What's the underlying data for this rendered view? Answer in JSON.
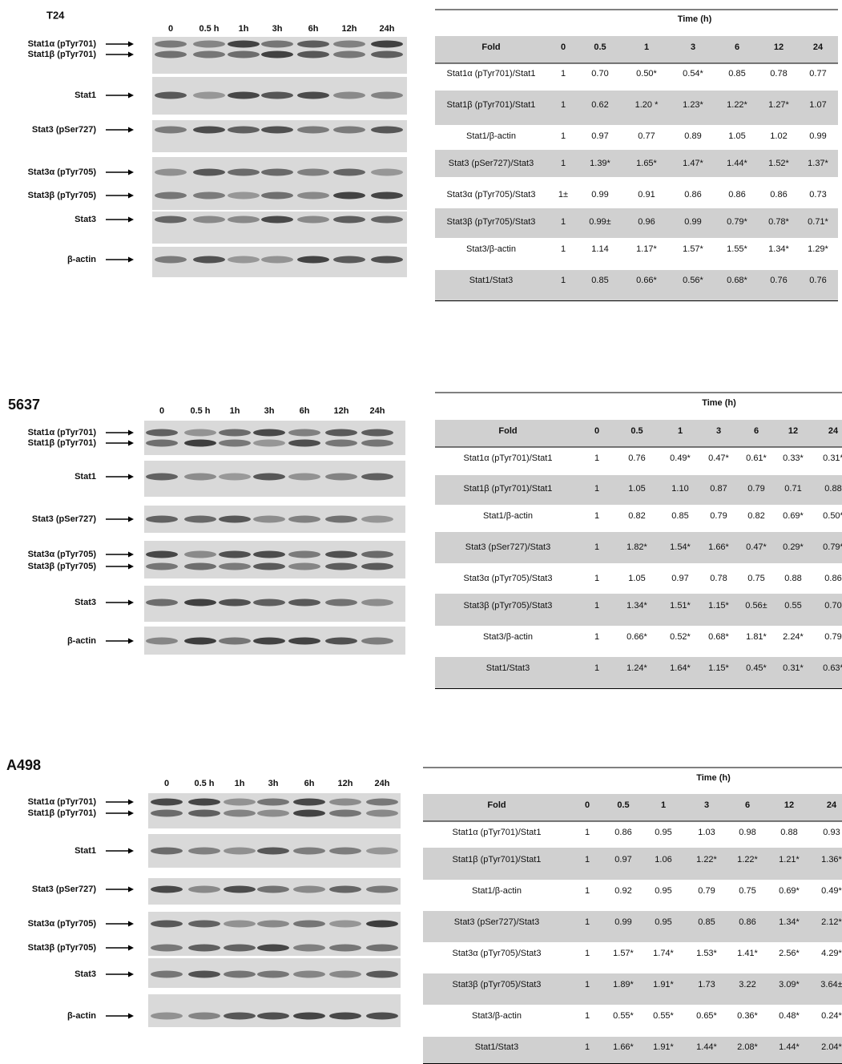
{
  "panels": [
    {
      "title": "T24",
      "lanes": [
        "0",
        "0.5 h",
        "1h",
        "3h",
        "6h",
        "12h",
        "24h"
      ],
      "blot_labels": [
        "Stat1α (pTyr701)",
        "Stat1β (pTyr701)",
        "Stat1",
        "Stat3 (pSer727)",
        "Stat3α (pTyr705)",
        "Stat3β (pTyr705)",
        "Stat3",
        "β-actin"
      ],
      "table": {
        "time_label": "Time (h)",
        "header": [
          "Fold",
          "0",
          "0.5",
          "1",
          "3",
          "6",
          "12",
          "24"
        ],
        "rows": [
          [
            "Stat1α (pTyr701)/Stat1",
            "1",
            "0.70",
            "0.50*",
            "0.54*",
            "0.85",
            "0.78",
            "0.77"
          ],
          [
            "Stat1β (pTyr701)/Stat1",
            "1",
            "0.62",
            "1.20 *",
            "1.23*",
            "1.22*",
            "1.27*",
            "1.07"
          ],
          [
            "Stat1/β-actin",
            "1",
            "0.97",
            "0.77",
            "0.89",
            "1.05",
            "1.02",
            "0.99"
          ],
          [
            "Stat3 (pSer727)/Stat3",
            "1",
            "1.39*",
            "1.65*",
            "1.47*",
            "1.44*",
            "1.52*",
            "1.37*"
          ],
          [
            "Stat3α (pTyr705)/Stat3",
            "1±",
            "0.99",
            "0.91",
            "0.86",
            "0.86",
            "0.86",
            "0.73"
          ],
          [
            "Stat3β (pTyr705)/Stat3",
            "1",
            "0.99±",
            "0.96",
            "0.99",
            "0.79*",
            "0.78*",
            "0.71*"
          ],
          [
            "Stat3/β-actin",
            "1",
            "1.14",
            "1.17*",
            "1.57*",
            "1.55*",
            "1.34*",
            "1.29*"
          ],
          [
            "Stat1/Stat3",
            "1",
            "0.85",
            "0.66*",
            "0.56*",
            "0.68*",
            "0.76",
            "0.76"
          ]
        ]
      }
    },
    {
      "title": "5637",
      "lanes": [
        "0",
        "0.5 h",
        "1h",
        "3h",
        "6h",
        "12h",
        "24h"
      ],
      "blot_labels": [
        "Stat1α (pTyr701)",
        "Stat1β (pTyr701)",
        "Stat1",
        "Stat3 (pSer727)",
        "Stat3α (pTyr705)",
        "Stat3β (pTyr705)",
        "Stat3",
        "β-actin"
      ],
      "table": {
        "time_label": "Time (h)",
        "header": [
          "Fold",
          "0",
          "0.5",
          "1",
          "3",
          "6",
          "12",
          "24"
        ],
        "rows": [
          [
            "Stat1α (pTyr701)/Stat1",
            "1",
            "0.76",
            "0.49*",
            "0.47*",
            "0.61*",
            "0.33*",
            "0.31*"
          ],
          [
            "Stat1β (pTyr701)/Stat1",
            "1",
            "1.05",
            "1.10",
            "0.87",
            "0.79",
            "0.71",
            "0.88"
          ],
          [
            "Stat1/β-actin",
            "1",
            "0.82",
            "0.85",
            "0.79",
            "0.82",
            "0.69*",
            "0.50*"
          ],
          [
            "Stat3 (pSer727)/Stat3",
            "1",
            "1.82*",
            "1.54*",
            "1.66*",
            "0.47*",
            "0.29*",
            "0.79*"
          ],
          [
            "Stat3α (pTyr705)/Stat3",
            "1",
            "1.05",
            "0.97",
            "0.78",
            "0.75",
            "0.88",
            "0.86"
          ],
          [
            "Stat3β (pTyr705)/Stat3",
            "1",
            "1.34*",
            "1.51*",
            "1.15*",
            "0.56±",
            "0.55",
            "0.70"
          ],
          [
            "Stat3/β-actin",
            "1",
            "0.66*",
            "0.52*",
            "0.68*",
            "1.81*",
            "2.24*",
            "0.79"
          ],
          [
            "Stat1/Stat3",
            "1",
            "1.24*",
            "1.64*",
            "1.15*",
            "0.45*",
            "0.31*",
            "0.63*"
          ]
        ]
      }
    },
    {
      "title": "A498",
      "lanes": [
        "0",
        "0.5 h",
        "1h",
        "3h",
        "6h",
        "12h",
        "24h"
      ],
      "blot_labels": [
        "Stat1α (pTyr701)",
        "Stat1β (pTyr701)",
        "Stat1",
        "Stat3 (pSer727)",
        "Stat3α (pTyr705)",
        "Stat3β (pTyr705)",
        "Stat3",
        "β-actin"
      ],
      "table": {
        "time_label": "Time (h)",
        "header": [
          "Fold",
          "0",
          "0.5",
          "1",
          "3",
          "6",
          "12",
          "24"
        ],
        "rows": [
          [
            "Stat1α (pTyr701)/Stat1",
            "1",
            "0.86",
            "0.95",
            "1.03",
            "0.98",
            "0.88",
            "0.93"
          ],
          [
            "Stat1β (pTyr701)/Stat1",
            "1",
            "0.97",
            "1.06",
            "1.22*",
            "1.22*",
            "1.21*",
            "1.36*"
          ],
          [
            "Stat1/β-actin",
            "1",
            "0.92",
            "0.95",
            "0.79",
            "0.75",
            "0.69*",
            "0.49*"
          ],
          [
            "Stat3 (pSer727)/Stat3",
            "1",
            "0.99",
            "0.95",
            "0.85",
            "0.86",
            "1.34*",
            "2.12*"
          ],
          [
            "Stat3α (pTyr705)/Stat3",
            "1",
            "1.57*",
            "1.74*",
            "1.53*",
            "1.41*",
            "2.56*",
            "4.29*"
          ],
          [
            "Stat3β (pTyr705)/Stat3",
            "1",
            "1.89*",
            "1.91*",
            "1.73",
            "3.22",
            "3.09*",
            "3.64±"
          ],
          [
            "Stat3/β-actin",
            "1",
            "0.55*",
            "0.55*",
            "0.65*",
            "0.36*",
            "0.48*",
            "0.24*"
          ],
          [
            "Stat1/Stat3",
            "1",
            "1.66*",
            "1.91*",
            "1.44*",
            "2.08*",
            "1.44*",
            "2.04*"
          ]
        ]
      }
    }
  ]
}
